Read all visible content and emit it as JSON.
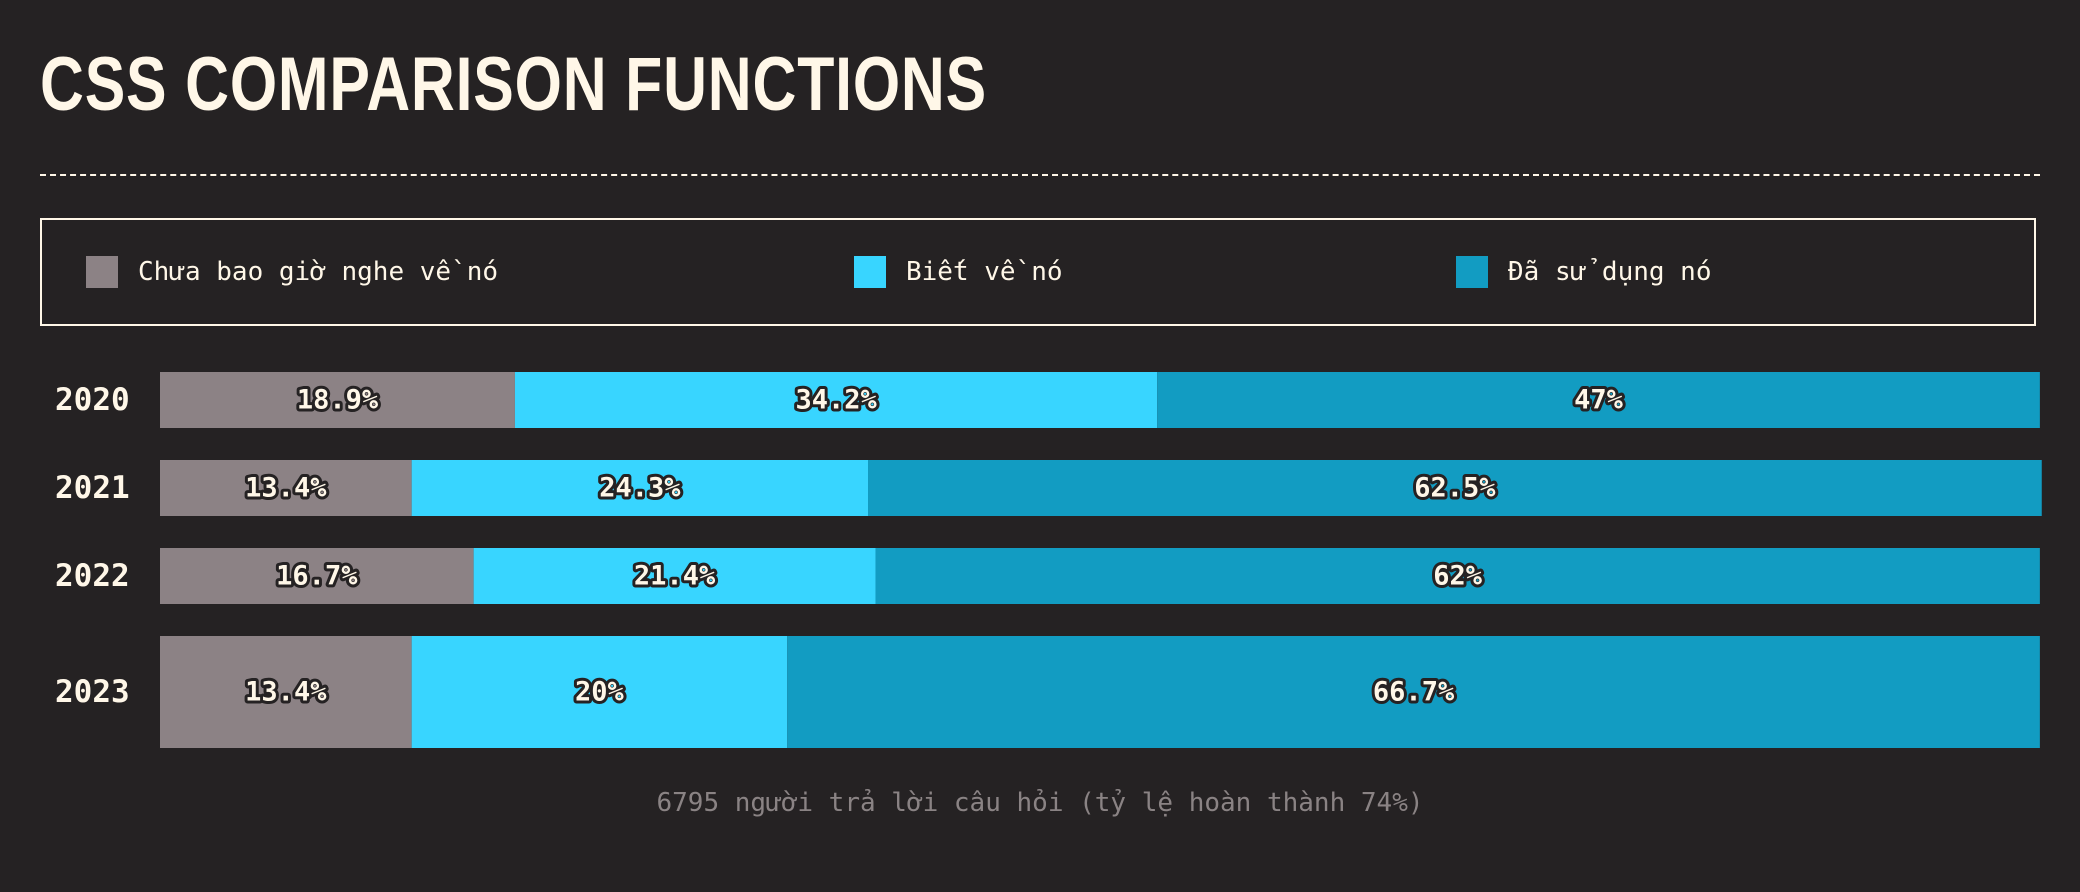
{
  "title": "CSS COMPARISON FUNCTIONS",
  "legend": [
    {
      "label": "Chưa bao giờ nghe về nó",
      "color": "#8c8285"
    },
    {
      "label": "Biết về nó",
      "color": "#38d5ff"
    },
    {
      "label": "Đã sử dụng nó",
      "color": "#129cc2"
    }
  ],
  "caption": "6795 người trả lời câu hỏi (tỷ lệ hoàn thành 74%)",
  "chart_data": {
    "type": "bar",
    "orientation": "horizontal",
    "stacked": true,
    "categories": [
      "2020",
      "2021",
      "2022",
      "2023"
    ],
    "series": [
      {
        "name": "Chưa bao giờ nghe về nó",
        "color": "#8c8285",
        "values": [
          18.9,
          13.4,
          16.7,
          13.4
        ],
        "labels": [
          "18.9%",
          "13.4%",
          "16.7%",
          "13.4%"
        ]
      },
      {
        "name": "Biết về nó",
        "color": "#38d5ff",
        "values": [
          34.2,
          24.3,
          21.4,
          20
        ],
        "labels": [
          "34.2%",
          "24.3%",
          "21.4%",
          "20%"
        ]
      },
      {
        "name": "Đã sử dụng nó",
        "color": "#129cc2",
        "values": [
          47,
          62.5,
          62,
          66.7
        ],
        "labels": [
          "47%",
          "62.5%",
          "62%",
          "66.7%"
        ]
      }
    ],
    "xlim": [
      0,
      100
    ],
    "grid": false,
    "legend_position": "top"
  }
}
